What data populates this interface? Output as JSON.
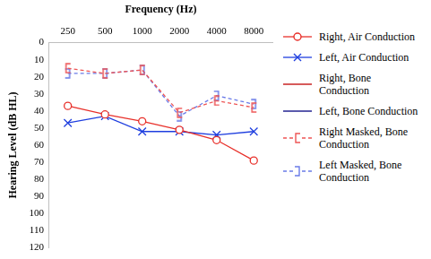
{
  "chart_data": {
    "type": "line",
    "x_label": "Frequency (Hz)",
    "y_label": "Hearing Level (dB HL)",
    "categories": [
      "250",
      "500",
      "1000",
      "2000",
      "4000",
      "8000"
    ],
    "series": [
      {
        "name": "Right, Air Conduction",
        "color": "#e8302a",
        "marker": "circle",
        "line_style": "solid",
        "values": [
          37,
          42,
          46,
          51,
          57,
          69
        ]
      },
      {
        "name": "Left, Air Conduction",
        "color": "#1f3fdf",
        "marker": "x",
        "line_style": "solid",
        "values": [
          47,
          43,
          52,
          52,
          54,
          52
        ]
      },
      {
        "name": "Right, Bone Conduction",
        "color": "#c00000",
        "marker": "none",
        "line_style": "solid",
        "values": [
          null,
          null,
          null,
          null,
          null,
          null
        ]
      },
      {
        "name": "Left, Bone Conduction",
        "color": "#000080",
        "marker": "none",
        "line_style": "solid",
        "values": [
          null,
          null,
          null,
          null,
          null,
          null
        ]
      },
      {
        "name": "Right Masked, Bone Conduction",
        "color": "#ee5555",
        "marker": "bracket_left",
        "line_style": "dashed",
        "values": [
          15,
          18,
          16,
          41,
          34,
          38
        ]
      },
      {
        "name": "Left Masked, Bone Conduction",
        "color": "#6a7be8",
        "marker": "bracket_right",
        "line_style": "dashed",
        "values": [
          18,
          18,
          16,
          43,
          31,
          36
        ]
      }
    ],
    "ylim": [
      0,
      120
    ],
    "yticks": [
      0,
      10,
      20,
      30,
      40,
      50,
      60,
      70,
      80,
      90,
      100,
      110,
      120
    ],
    "grid": false,
    "legend": "right"
  }
}
